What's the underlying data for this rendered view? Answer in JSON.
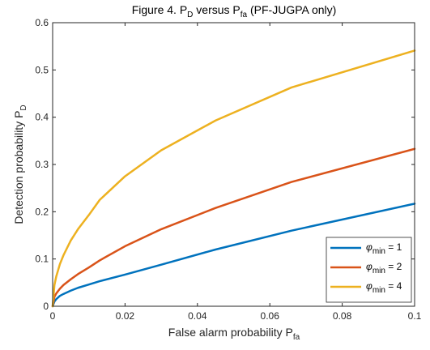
{
  "chart_data": {
    "type": "line",
    "title": {
      "main": "Figure 4. P",
      "sub1": "D",
      "mid": " versus P",
      "sub2": "fa",
      "tail": " (PF-JUGPA only)"
    },
    "xlabel": {
      "main": "False alarm probability P",
      "sub": "fa"
    },
    "ylabel": {
      "main": "Detection probability P",
      "sub": "D"
    },
    "xlim": [
      0,
      0.1
    ],
    "ylim": [
      0,
      0.6
    ],
    "x_ticks": [
      0,
      0.02,
      0.04,
      0.06,
      0.08,
      0.1
    ],
    "x_tick_labels": [
      "0",
      "0.02",
      "0.04",
      "0.06",
      "0.08",
      "0.1"
    ],
    "y_ticks": [
      0,
      0.1,
      0.2,
      0.3,
      0.4,
      0.5,
      0.6
    ],
    "y_tick_labels": [
      "0",
      "0.1",
      "0.2",
      "0.3",
      "0.4",
      "0.5",
      "0.6"
    ],
    "grid": false,
    "legend_position": "bottom-right",
    "x": [
      0,
      0.0005,
      0.001,
      0.002,
      0.003,
      0.005,
      0.007,
      0.01,
      0.013,
      0.02,
      0.03,
      0.045,
      0.066,
      0.1
    ],
    "series": [
      {
        "symbol": "φ",
        "sub": "min",
        "suffix": " = 1",
        "color": "#0072BD",
        "values": [
          0,
          0.01,
          0.015,
          0.022,
          0.026,
          0.033,
          0.039,
          0.046,
          0.053,
          0.067,
          0.088,
          0.12,
          0.16,
          0.217
        ]
      },
      {
        "symbol": "φ",
        "sub": "min",
        "suffix": " = 2",
        "color": "#D95319",
        "values": [
          0,
          0.02,
          0.027,
          0.037,
          0.045,
          0.057,
          0.068,
          0.082,
          0.097,
          0.127,
          0.163,
          0.208,
          0.263,
          0.333
        ]
      },
      {
        "symbol": "φ",
        "sub": "min",
        "suffix": " = 4",
        "color": "#EDB120",
        "values": [
          0,
          0.045,
          0.063,
          0.089,
          0.108,
          0.139,
          0.163,
          0.193,
          0.225,
          0.275,
          0.33,
          0.393,
          0.463,
          0.541
        ]
      }
    ]
  }
}
